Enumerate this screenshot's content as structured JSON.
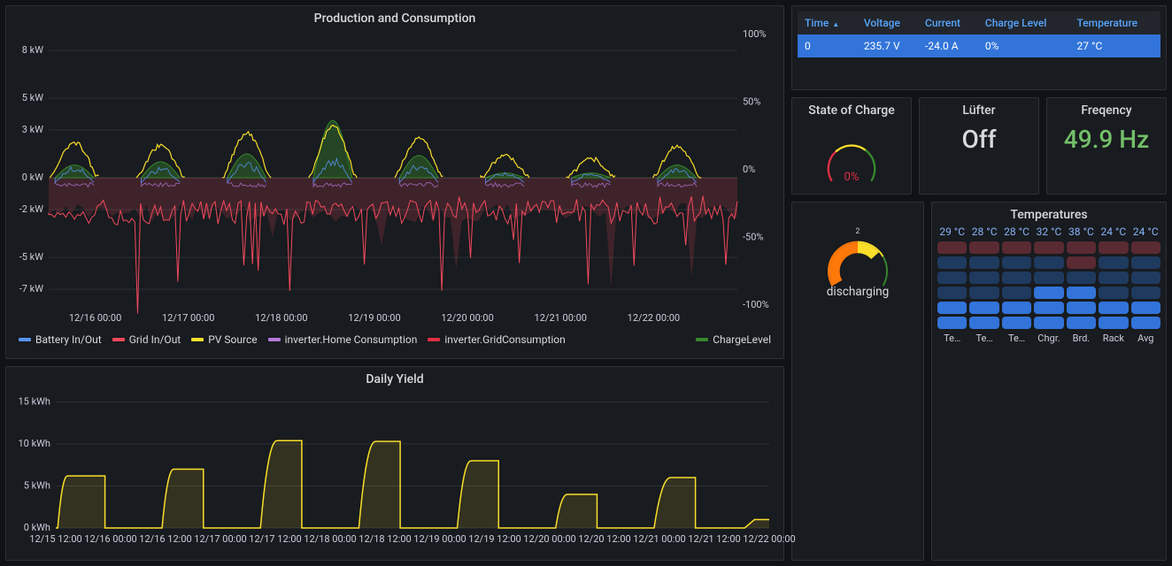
{
  "colors": {
    "bg": "#111217",
    "panel_bg": "#181b1f",
    "panel_border": "#2c3235",
    "text": "#d8d9da",
    "link": "#58a6ff",
    "blue_fill": "#3274d9",
    "green_text": "#73bf69",
    "grid": "#2c3235"
  },
  "main_chart": {
    "title": "Production and Consumption",
    "type": "timeseries",
    "y_left": {
      "unit": "kW",
      "ticks": [
        8,
        5,
        3,
        0,
        -2,
        -5,
        -7
      ],
      "min": -8,
      "max": 9
    },
    "y_right": {
      "unit": "%",
      "ticks": [
        100,
        50,
        0,
        -50,
        -100
      ],
      "min": -100,
      "max": 100
    },
    "x_labels": [
      "12/16 00:00",
      "12/17 00:00",
      "12/18 00:00",
      "12/19 00:00",
      "12/20 00:00",
      "12/21 00:00",
      "12/22 00:00"
    ],
    "series": [
      {
        "name": "Battery In/Out",
        "color": "#5794f2"
      },
      {
        "name": "Grid In/Out",
        "color": "#f2495c"
      },
      {
        "name": "PV Source",
        "color": "#fade2a"
      },
      {
        "name": "inverter.Home Consumption",
        "color": "#b877d9"
      },
      {
        "name": "inverter.GridConsumption",
        "color": "#e02f44"
      },
      {
        "name": "ChargeLevel",
        "color": "#37872d",
        "align": "right"
      }
    ],
    "pv_peaks": [
      2.2,
      2.0,
      2.8,
      3.2,
      2.5,
      1.4,
      1.2,
      2.0
    ],
    "charge_peaks": [
      0.8,
      1.0,
      1.5,
      3.6,
      1.4,
      0.3,
      0.3,
      0.8
    ],
    "grid_band": {
      "upper": 0,
      "lower": -2.2,
      "fill": "rgba(242,73,92,0.18)",
      "stroke": "#f2495c"
    }
  },
  "table": {
    "columns": [
      {
        "label": "Time",
        "sorted": true
      },
      {
        "label": "Voltage"
      },
      {
        "label": "Current"
      },
      {
        "label": "Charge Level"
      },
      {
        "label": "Temperature"
      }
    ],
    "row": [
      "0",
      "235.7 V",
      "-24.0 A",
      "0%",
      "27 °C"
    ],
    "header_bg": "#22252b",
    "cell_bg": "#3274d9"
  },
  "soc_gauge": {
    "title": "State of Charge",
    "value_label": "0%",
    "value": 0,
    "min": 0,
    "max": 100,
    "arc_colors": [
      "#e02f44",
      "#fade2a",
      "#37872d"
    ],
    "value_color": "#e02f44"
  },
  "fan": {
    "title": "Lüfter",
    "value": "Off",
    "value_color": "#d8d9da"
  },
  "freq": {
    "title": "Freqency",
    "value": "49.9 Hz",
    "value_color": "#73bf69"
  },
  "discharge_gauge": {
    "label": "discharging",
    "scale_label": "2",
    "value": 1.4,
    "min": 0,
    "max": 2,
    "arc_colors": [
      "#ff780a",
      "#fade2a",
      "#37872d"
    ],
    "pointer_color": "#ff780a"
  },
  "temperatures": {
    "title": "Temperatures",
    "headers": [
      "29 °C",
      "28 °C",
      "28 °C",
      "32 °C",
      "38 °C",
      "24 °C",
      "24 °C"
    ],
    "footers": [
      "Te…",
      "Te…",
      "Te…",
      "Chgr.",
      "Brd.",
      "Rack",
      "Avg"
    ],
    "rows": 6,
    "palette": {
      "dark_red": "#5a2a32",
      "dark_blue": "#1f3a5f",
      "blue": "#3274d9"
    },
    "grid": [
      [
        "dark_red",
        "dark_red",
        "dark_red",
        "dark_red",
        "dark_red",
        "dark_red",
        "dark_red"
      ],
      [
        "dark_blue",
        "dark_blue",
        "dark_blue",
        "dark_blue",
        "dark_red",
        "dark_blue",
        "dark_blue"
      ],
      [
        "dark_blue",
        "dark_blue",
        "dark_blue",
        "dark_blue",
        "dark_blue",
        "dark_blue",
        "dark_blue"
      ],
      [
        "dark_blue",
        "dark_blue",
        "dark_blue",
        "blue",
        "blue",
        "dark_blue",
        "dark_blue"
      ],
      [
        "blue",
        "blue",
        "blue",
        "blue",
        "blue",
        "blue",
        "blue"
      ],
      [
        "blue",
        "blue",
        "blue",
        "blue",
        "blue",
        "blue",
        "blue"
      ]
    ]
  },
  "daily_yield": {
    "title": "Daily Yield",
    "type": "area-step",
    "color": "#fade2a",
    "fill": "rgba(250,222,42,0.12)",
    "y": {
      "unit": "kWh",
      "ticks": [
        15,
        10,
        5,
        0
      ],
      "min": 0,
      "max": 16
    },
    "x_labels": [
      "12/15 12:00",
      "12/16 00:00",
      "12/16 12:00",
      "12/17 00:00",
      "12/17 12:00",
      "12/18 00:00",
      "12/18 12:00",
      "12/19 00:00",
      "12/19 12:00",
      "12/20 00:00",
      "12/20 12:00",
      "12/21 00:00",
      "12/21 12:00",
      "12/22 00:00"
    ],
    "days": [
      {
        "peak": 6.2,
        "rise_start": 0.02,
        "plateau_start": 0.12,
        "drop": 0.5
      },
      {
        "peak": 7.0,
        "rise_start": 0.08,
        "plateau_start": 0.2,
        "drop": 0.5
      },
      {
        "peak": 10.4,
        "rise_start": 0.08,
        "plateau_start": 0.25,
        "drop": 0.5
      },
      {
        "peak": 10.3,
        "rise_start": 0.08,
        "plateau_start": 0.25,
        "drop": 0.5
      },
      {
        "peak": 8.0,
        "rise_start": 0.08,
        "plateau_start": 0.22,
        "drop": 0.5
      },
      {
        "peak": 4.0,
        "rise_start": 0.08,
        "plateau_start": 0.2,
        "drop": 0.5
      },
      {
        "peak": 6.0,
        "rise_start": 0.08,
        "plateau_start": 0.25,
        "drop": 0.5
      }
    ],
    "tail_pts": [
      0,
      1.0
    ]
  }
}
